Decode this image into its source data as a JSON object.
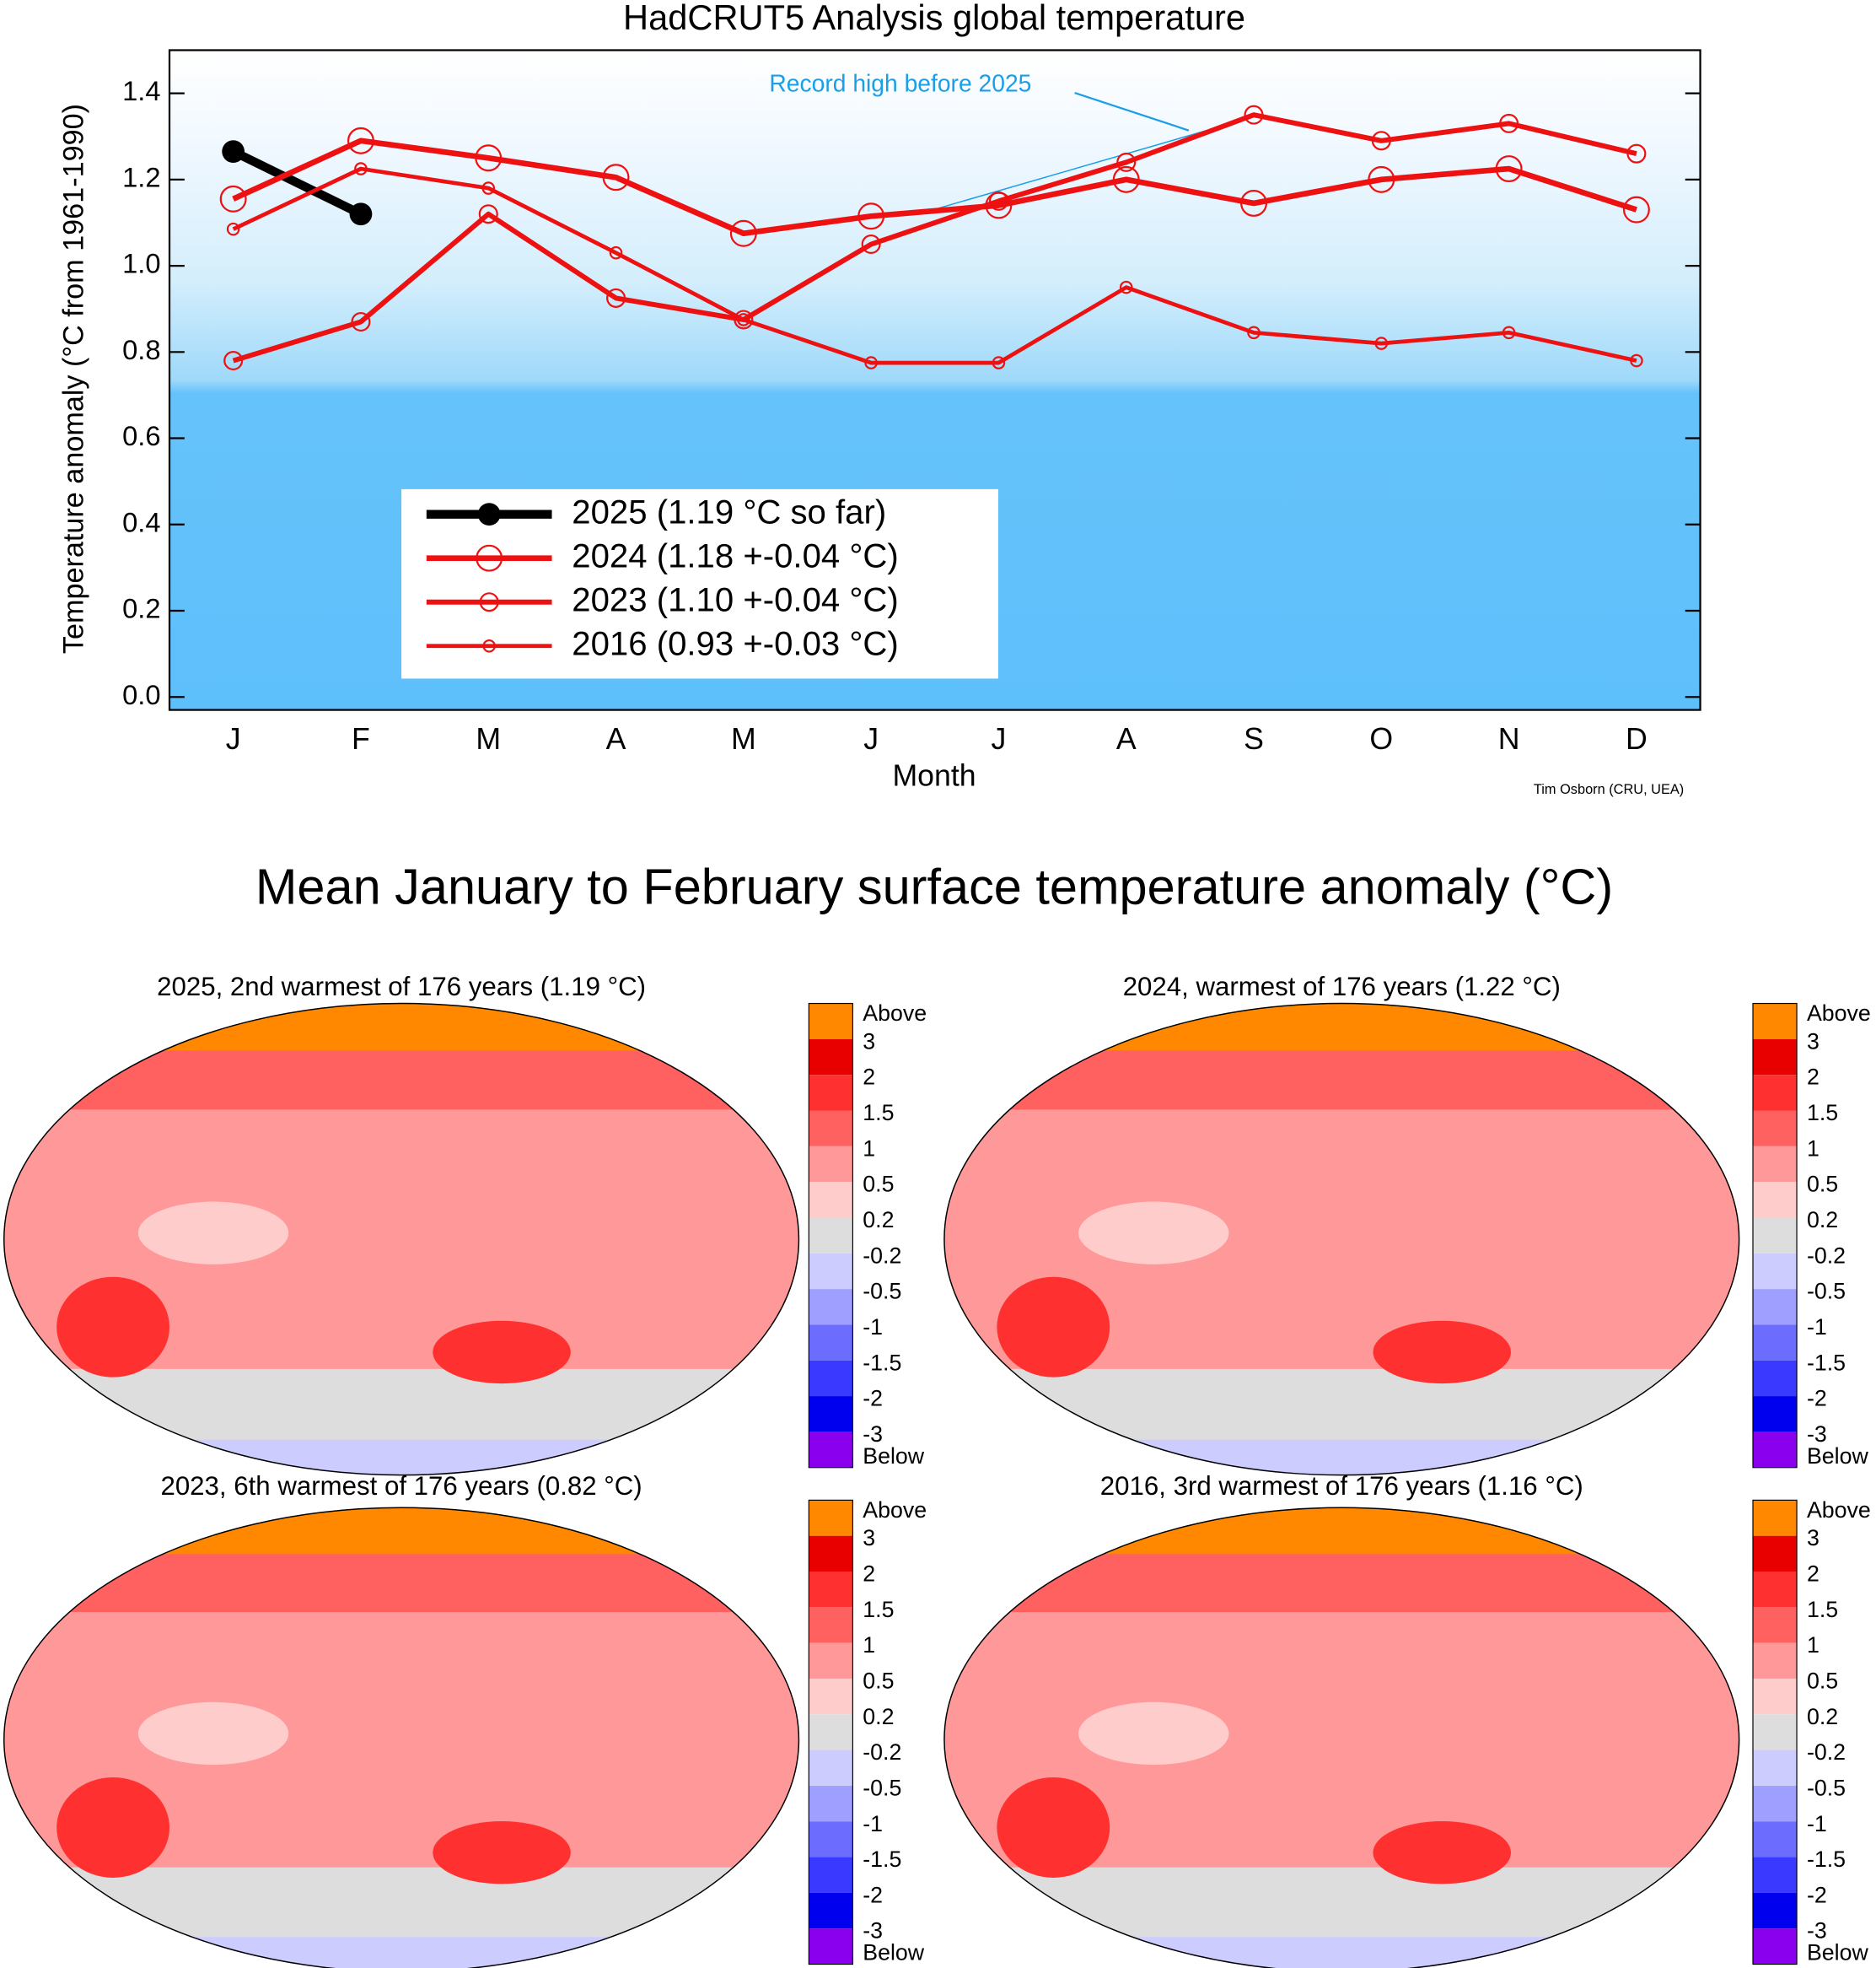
{
  "chart_data": {
    "type": "line",
    "title": "HadCRUT5 Analysis global temperature",
    "x_label": "Month",
    "y_label": "Temperature anomaly (°C from 1961-1990)",
    "categories": [
      "J",
      "F",
      "M",
      "A",
      "M",
      "J",
      "J",
      "A",
      "S",
      "O",
      "N",
      "D"
    ],
    "ylim": [
      -0.03,
      1.5
    ],
    "yticks": [
      {
        "value": 0,
        "label": "0.0"
      },
      {
        "value": 0.2,
        "label": "0.2"
      },
      {
        "value": 0.4,
        "label": "0.4"
      },
      {
        "value": 0.6,
        "label": "0.6"
      },
      {
        "value": 0.8,
        "label": "0.8"
      },
      {
        "value": 1.0,
        "label": "1.0"
      },
      {
        "value": 1.2,
        "label": "1.2"
      },
      {
        "value": 1.4,
        "label": "1.4"
      }
    ],
    "annotation": "Record high before 2025",
    "credit": "Tim Osborn (CRU, UEA)",
    "series": [
      {
        "name": "2025 (1.19 °C so far)",
        "color": "#000000",
        "values": [
          1.265,
          1.12,
          null,
          null,
          null,
          null,
          null,
          null,
          null,
          null,
          null,
          null
        ]
      },
      {
        "name": "2024 (1.18 +-0.04 °C)",
        "color": "#ee1111",
        "values": [
          1.155,
          1.29,
          1.25,
          1.205,
          1.075,
          1.115,
          1.14,
          1.2,
          1.145,
          1.2,
          1.225,
          1.13
        ]
      },
      {
        "name": "2023 (1.10 +-0.04 °C)",
        "color": "#ee1111",
        "values": [
          0.78,
          0.87,
          1.12,
          0.925,
          0.875,
          1.05,
          1.15,
          1.24,
          1.35,
          1.29,
          1.33,
          1.26
        ]
      },
      {
        "name": "2016 (0.93 +-0.03 °C)",
        "color": "#ee1111",
        "values": [
          1.085,
          1.225,
          1.18,
          1.03,
          0.875,
          0.775,
          0.775,
          0.95,
          0.845,
          0.82,
          0.845,
          0.78
        ]
      }
    ]
  },
  "maps": {
    "title": "Mean January to February surface temperature anomaly (°C)",
    "panels": [
      {
        "title": "2025, 2nd warmest of 176 years (1.19 °C)"
      },
      {
        "title": "2024, warmest of 176 years (1.22 °C)"
      },
      {
        "title": "2023, 6th warmest of 176 years (0.82 °C)"
      },
      {
        "title": "2016, 3rd warmest of 176 years (1.16 °C)"
      }
    ],
    "colorbar": {
      "labels": [
        "Above",
        3,
        2,
        1.5,
        1,
        0.5,
        0.2,
        -0.2,
        -0.5,
        -1,
        -1.5,
        -2,
        -3,
        "Below"
      ],
      "colors": [
        "#ff8800",
        "#e80000",
        "#ff3030",
        "#ff6060",
        "#ff9898",
        "#ffcccc",
        "#dddddd",
        "#ccccff",
        "#9f9fff",
        "#6c6cff",
        "#3939ff",
        "#0000ee",
        "#8a00ee"
      ]
    }
  }
}
